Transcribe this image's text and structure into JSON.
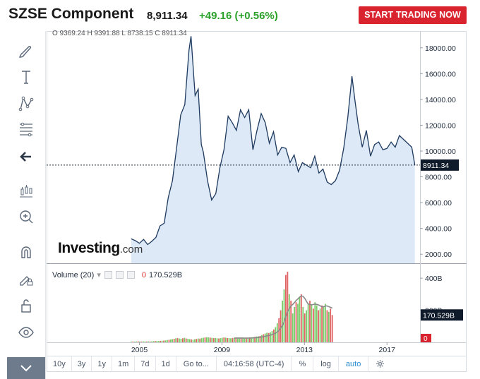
{
  "header": {
    "title": "SZSE Component",
    "price": "8,911.34",
    "change": "+49.16 (+0.56%)",
    "cta_label": "START TRADING NOW"
  },
  "ohlc_text": "O 9369.24  H 9391.88  L 8738.15  C 8911.34",
  "logo": {
    "brand": "Investing",
    "suffix": ".com"
  },
  "volume_panel": {
    "label": "Volume (20)",
    "zero_value": "0",
    "current_value": "170.529B",
    "axis_ticks": [
      "400B",
      "200B"
    ],
    "axis_zero": "0"
  },
  "bottom_bar": {
    "periods": [
      "10y",
      "3y",
      "1y",
      "1m",
      "7d",
      "1d"
    ],
    "goto_label": "Go to...",
    "time": "04:16:58 (UTC-4)",
    "percent_label": "%",
    "log_label": "log",
    "auto_label": "auto"
  },
  "toolbar": {
    "icons": [
      "brush-icon",
      "text-icon",
      "pattern-icon",
      "fib-retracement-icon",
      "back-arrow-icon",
      "measure-icon",
      "zoom-in-icon",
      "magnet-icon",
      "pencil-lock-icon",
      "unlock-icon",
      "eye-icon",
      "chevron-down-icon"
    ]
  },
  "colors": {
    "line": "#1e3a5f",
    "area_fill": "#dde9f6",
    "up_bar": "#7ccb6a",
    "down_bar": "#e06464",
    "cta": "#d9232e",
    "change_up": "#2aa12a"
  },
  "chart_data": [
    {
      "type": "area",
      "x_tick_labels": [
        "2005",
        "2009",
        "2013",
        "2017"
      ],
      "y_ticks": [
        2000,
        4000,
        6000,
        8000,
        10000,
        12000,
        14000,
        16000,
        18000
      ],
      "y_tick_labels": [
        "2000.00",
        "4000.00",
        "6000.00",
        "8000.00",
        "10000.00",
        "12000.00",
        "14000.00",
        "16000.00",
        "18000.00"
      ],
      "ylim": [
        1300,
        19300
      ],
      "xlim": [
        2000.5,
        2018.6
      ],
      "last_value_label": "8911.34",
      "last_value": 8911.34,
      "series": [
        {
          "x": [
            2004.6,
            2004.8,
            2005.0,
            2005.2,
            2005.4,
            2005.6,
            2005.8,
            2006.0,
            2006.2,
            2006.4,
            2006.6,
            2006.8,
            2007.0,
            2007.2,
            2007.4,
            2007.5,
            2007.7,
            2007.85,
            2008.0,
            2008.1,
            2008.3,
            2008.5,
            2008.7,
            2008.9,
            2009.1,
            2009.3,
            2009.5,
            2009.7,
            2009.9,
            2010.1,
            2010.3,
            2010.5,
            2010.7,
            2010.9,
            2011.1,
            2011.3,
            2011.5,
            2011.7,
            2011.9,
            2012.1,
            2012.3,
            2012.5,
            2012.7,
            2012.9,
            2013.1,
            2013.3,
            2013.5,
            2013.7,
            2013.9,
            2014.1,
            2014.3,
            2014.5,
            2014.7,
            2014.9,
            2015.1,
            2015.3,
            2015.45,
            2015.6,
            2015.8,
            2016.0,
            2016.2,
            2016.4,
            2016.6,
            2016.8,
            2017.0,
            2017.2,
            2017.4,
            2017.6,
            2017.8,
            2018.0,
            2018.2,
            2018.35
          ],
          "y": [
            3200,
            3050,
            2850,
            3150,
            2750,
            3000,
            3300,
            4200,
            4400,
            6400,
            7700,
            10200,
            12800,
            13600,
            17800,
            18900,
            14300,
            14800,
            10500,
            9900,
            7700,
            6200,
            6700,
            8700,
            10100,
            12700,
            12200,
            11600,
            13200,
            12600,
            13200,
            10100,
            11600,
            12900,
            12200,
            10600,
            11500,
            9700,
            10300,
            10200,
            9100,
            9700,
            8400,
            9100,
            8900,
            8700,
            9600,
            8300,
            8600,
            7600,
            7400,
            7700,
            8500,
            10200,
            12600,
            15800,
            13900,
            12100,
            10300,
            11600,
            9600,
            10500,
            10700,
            10100,
            10200,
            10700,
            10300,
            11200,
            10900,
            10600,
            10300,
            8911
          ]
        }
      ]
    },
    {
      "type": "bar",
      "ylim": [
        0,
        480
      ],
      "y_ticks": [
        0,
        200,
        400
      ],
      "y_tick_labels": [
        "0",
        "200B",
        "400B"
      ],
      "last_value_label": "170.529B",
      "last_value": 170.529,
      "series": [
        {
          "name": "Volume (20)",
          "x_start": 2004.6,
          "x_step": 0.0833,
          "values": [
            4,
            5,
            4,
            5,
            6,
            5,
            4,
            6,
            5,
            5,
            6,
            5,
            6,
            7,
            8,
            9,
            8,
            9,
            10,
            11,
            12,
            14,
            15,
            18,
            20,
            22,
            25,
            26,
            24,
            22,
            25,
            28,
            24,
            22,
            20,
            18,
            16,
            19,
            21,
            24,
            23,
            26,
            28,
            30,
            32,
            31,
            29,
            28,
            26,
            27,
            25,
            24,
            26,
            28,
            30,
            29,
            27,
            26,
            25,
            27,
            28,
            27,
            26,
            25,
            24,
            26,
            27,
            28,
            29,
            30,
            31,
            32,
            34,
            36,
            38,
            40,
            45,
            50,
            55,
            60,
            58,
            62,
            70,
            80,
            95,
            120,
            150,
            200,
            260,
            330,
            420,
            440,
            300,
            260,
            180,
            220,
            250,
            240,
            280,
            300,
            220,
            180,
            200,
            240,
            260,
            230,
            210,
            250,
            230,
            200,
            210,
            230,
            220,
            240,
            200,
            190,
            210,
            170
          ],
          "up": [
            1,
            0,
            1,
            1,
            0,
            1,
            0,
            1,
            1,
            0,
            1,
            0,
            1,
            1,
            0,
            1,
            1,
            0,
            1,
            0,
            1,
            1,
            0,
            1,
            1,
            0,
            1,
            0,
            1,
            1,
            0,
            1,
            0,
            1,
            1,
            0,
            1,
            1,
            0,
            1,
            0,
            1,
            1,
            0,
            1,
            1,
            0,
            1,
            0,
            1,
            1,
            0,
            1,
            1,
            0,
            1,
            0,
            1,
            1,
            0,
            1,
            0,
            1,
            1,
            0,
            1,
            1,
            0,
            1,
            0,
            1,
            1,
            0,
            1,
            1,
            0,
            1,
            0,
            1,
            1,
            0,
            1,
            1,
            0,
            1,
            1,
            0,
            0,
            1,
            1,
            0,
            0,
            1,
            0,
            1,
            1,
            0,
            1,
            1,
            0,
            1,
            0,
            1,
            1,
            0,
            1,
            0,
            1,
            1,
            0,
            1,
            0,
            1,
            1,
            0,
            1,
            0,
            0
          ]
        },
        {
          "name": "MA",
          "x_start": 2004.6,
          "x_step": 0.0833,
          "values_from_index": 60
        }
      ]
    }
  ]
}
